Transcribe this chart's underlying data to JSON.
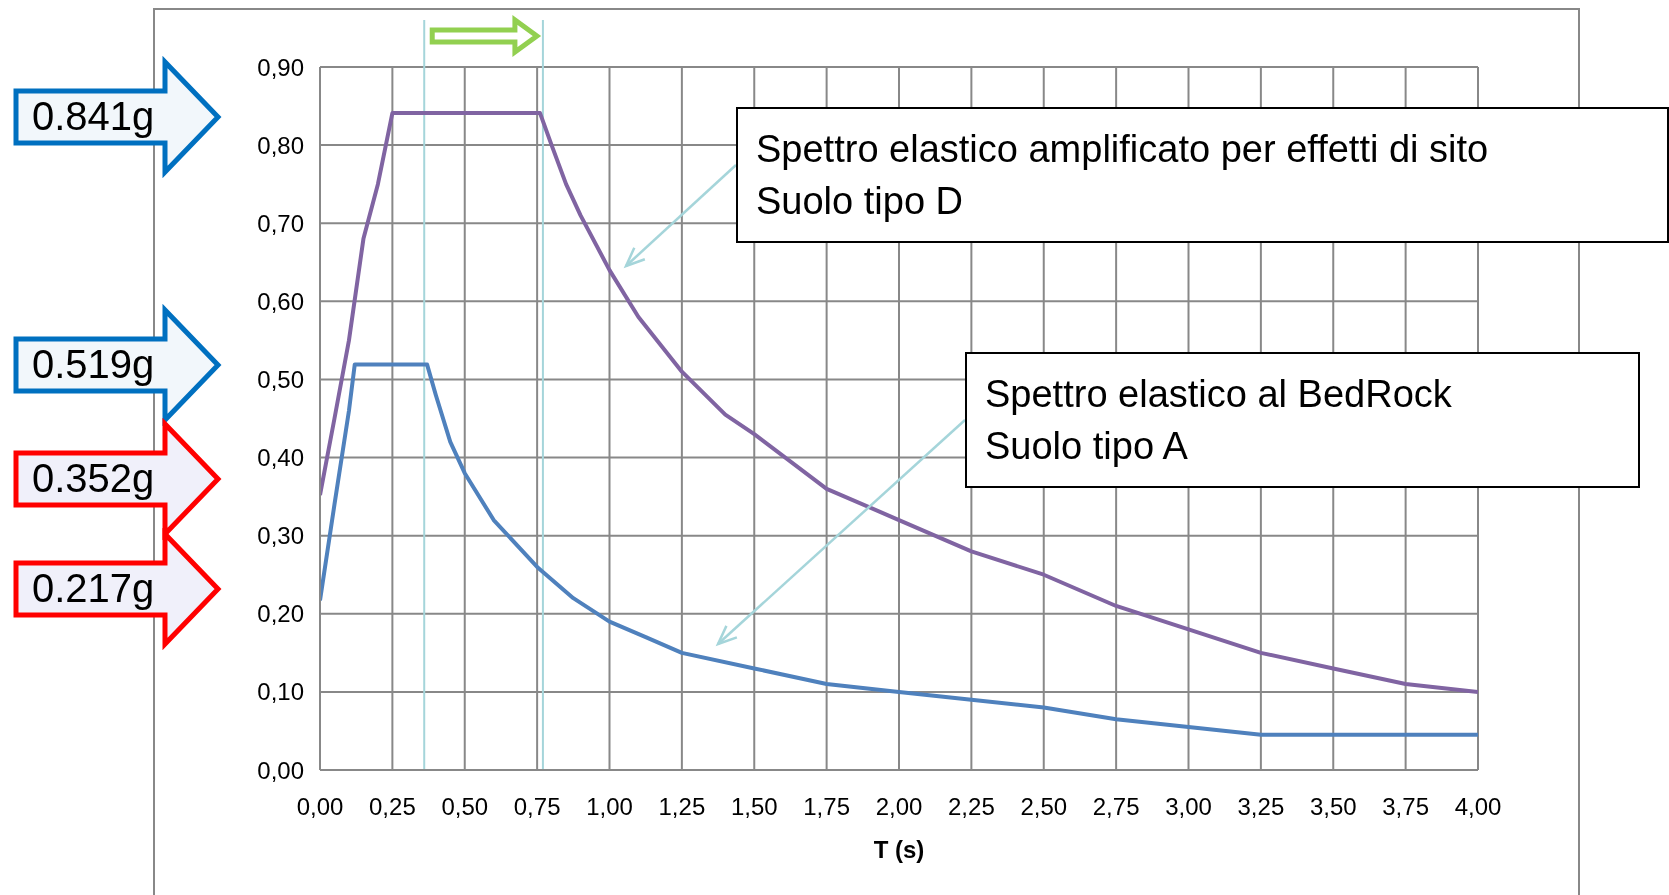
{
  "chart_data": {
    "type": "line",
    "xlabel": "T (s)",
    "xlim": [
      0,
      4
    ],
    "ylim": [
      0,
      0.9
    ],
    "xticks": [
      {
        "value": 0,
        "label": "0,00"
      },
      {
        "value": 0.25,
        "label": "0,25"
      },
      {
        "value": 0.5,
        "label": "0,50"
      },
      {
        "value": 0.75,
        "label": "0,75"
      },
      {
        "value": 1,
        "label": "1,00"
      },
      {
        "value": 1.25,
        "label": "1,25"
      },
      {
        "value": 1.5,
        "label": "1,50"
      },
      {
        "value": 1.75,
        "label": "1,75"
      },
      {
        "value": 2,
        "label": "2,00"
      },
      {
        "value": 2.25,
        "label": "2,25"
      },
      {
        "value": 2.5,
        "label": "2,50"
      },
      {
        "value": 2.75,
        "label": "2,75"
      },
      {
        "value": 3,
        "label": "3,00"
      },
      {
        "value": 3.25,
        "label": "3,25"
      },
      {
        "value": 3.5,
        "label": "3,50"
      },
      {
        "value": 3.75,
        "label": "3,75"
      },
      {
        "value": 4,
        "label": "4,00"
      }
    ],
    "yticks": [
      {
        "value": 0,
        "label": "0,00"
      },
      {
        "value": 0.1,
        "label": "0,10"
      },
      {
        "value": 0.2,
        "label": "0,20"
      },
      {
        "value": 0.3,
        "label": "0,30"
      },
      {
        "value": 0.4,
        "label": "0,40"
      },
      {
        "value": 0.5,
        "label": "0,50"
      },
      {
        "value": 0.6,
        "label": "0,60"
      },
      {
        "value": 0.7,
        "label": "0,70"
      },
      {
        "value": 0.8,
        "label": "0,80"
      },
      {
        "value": 0.9,
        "label": "0,90"
      }
    ],
    "grid": true,
    "series": [
      {
        "color": "#8064a2",
        "x": [
          0,
          0.05,
          0.1,
          0.15,
          0.2,
          0.25,
          0.76,
          0.8,
          0.85,
          0.9,
          1.0,
          1.1,
          1.25,
          1.4,
          1.5,
          1.75,
          2.0,
          2.25,
          2.5,
          2.75,
          3.0,
          3.25,
          3.5,
          3.75,
          4.0
        ],
        "values": [
          0.352,
          0.45,
          0.55,
          0.68,
          0.75,
          0.841,
          0.841,
          0.8,
          0.75,
          0.71,
          0.64,
          0.58,
          0.51,
          0.455,
          0.43,
          0.36,
          0.32,
          0.28,
          0.25,
          0.21,
          0.18,
          0.15,
          0.13,
          0.11,
          0.1
        ]
      },
      {
        "color": "#4f81bd",
        "x": [
          0,
          0.05,
          0.1,
          0.12,
          0.37,
          0.4,
          0.45,
          0.5,
          0.6,
          0.75,
          0.875,
          1.0,
          1.125,
          1.25,
          1.5,
          1.75,
          2.0,
          2.25,
          2.5,
          2.75,
          3.0,
          3.25,
          3.5,
          3.75,
          4.0
        ],
        "values": [
          0.217,
          0.34,
          0.46,
          0.519,
          0.519,
          0.48,
          0.42,
          0.38,
          0.32,
          0.26,
          0.22,
          0.19,
          0.17,
          0.15,
          0.13,
          0.11,
          0.1,
          0.09,
          0.08,
          0.065,
          0.055,
          0.045,
          0.045,
          0.045,
          0.045
        ]
      }
    ],
    "ref_lines": [
      {
        "axis": "x",
        "value": 0.36,
        "color": "#a5d5da"
      },
      {
        "axis": "x",
        "value": 0.77,
        "color": "#a5d5da"
      }
    ],
    "annotations": [
      "0.841g",
      "0.519g",
      "0.352g",
      "0.217g",
      "Spettro elastico amplificato per effetti di sito\nSuolo tipo D",
      "Spettro elastico al BedRock\nSuolo tipo A"
    ]
  }
}
